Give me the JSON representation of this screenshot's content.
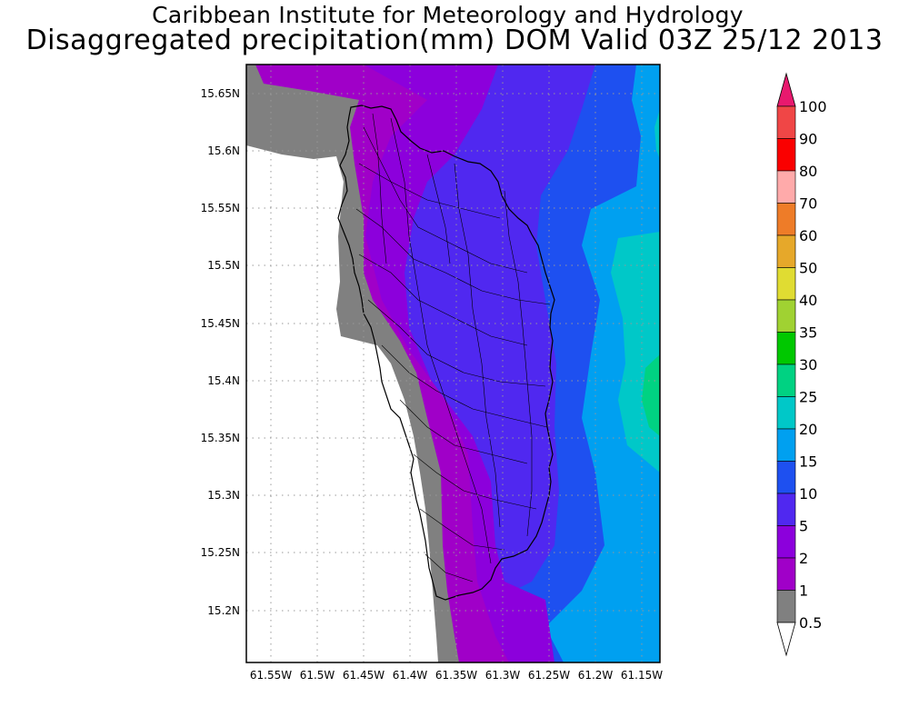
{
  "header": {
    "line1": "Caribbean Institute for Meteorology and Hydrology",
    "line2": "Disaggregated precipitation(mm) DOM Valid 03Z 25/12 2013"
  },
  "map": {
    "lat_ticks": [
      "15.65N",
      "15.6N",
      "15.55N",
      "15.5N",
      "15.45N",
      "15.4N",
      "15.35N",
      "15.3N",
      "15.25N",
      "15.2N"
    ],
    "lon_ticks": [
      "61.55W",
      "61.5W",
      "61.45W",
      "61.4W",
      "61.35W",
      "61.3W",
      "61.25W",
      "61.2W",
      "61.15W"
    ],
    "grid": "dotted"
  },
  "colorbar": {
    "labels": [
      "100",
      "90",
      "80",
      "70",
      "60",
      "50",
      "40",
      "35",
      "30",
      "25",
      "20",
      "15",
      "10",
      "5",
      "2",
      "1",
      "0.5"
    ],
    "colors": [
      "#e8196e",
      "#f04646",
      "#fa0000",
      "#ffaaaa",
      "#ee7c28",
      "#e6a82a",
      "#e0dc32",
      "#a0d232",
      "#00c800",
      "#00d282",
      "#00c8c8",
      "#00a0f0",
      "#1e50f0",
      "#5028f0",
      "#8c00dc",
      "#a000c8",
      "#808080",
      "#ffffff"
    ]
  },
  "fields": {
    "sea_colors": [
      "#a000c8",
      "#8c00dc",
      "#5028f0",
      "#1e50f0",
      "#00a0f0",
      "#00c8c8"
    ],
    "gray": "#808080"
  }
}
